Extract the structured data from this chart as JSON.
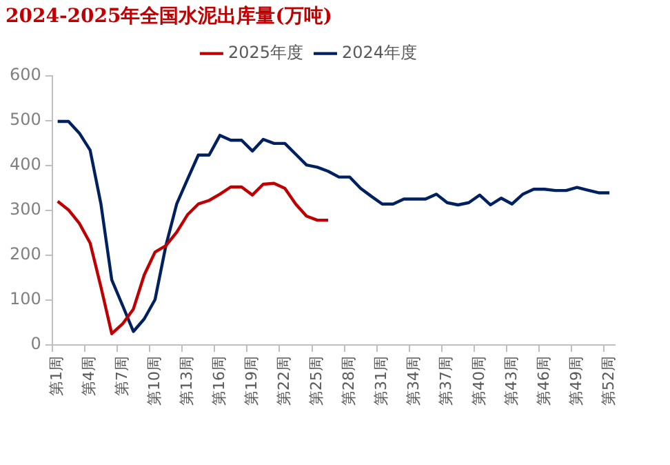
{
  "chart_data": {
    "type": "line",
    "title": "2024-2025年全国水泥出库量(万吨)",
    "categories": [
      "第1周",
      null,
      null,
      "第4周",
      null,
      null,
      "第7周",
      null,
      null,
      "第10周",
      null,
      null,
      "第13周",
      null,
      null,
      "第16周",
      null,
      null,
      "第19周",
      null,
      null,
      "第22周",
      null,
      null,
      "第25周",
      null,
      null,
      "第28周",
      null,
      null,
      "第31周",
      null,
      null,
      "第34周",
      null,
      null,
      "第37周",
      null,
      null,
      "第40周",
      null,
      null,
      "第43周",
      null,
      null,
      "第46周",
      null,
      null,
      "第49周",
      null,
      null,
      "第52周"
    ],
    "series": [
      {
        "name": "2025年度",
        "color": "#c00000",
        "values": [
          320,
          301,
          271,
          227,
          129,
          25,
          47,
          80,
          156,
          207,
          221,
          251,
          290,
          314,
          322,
          336,
          352,
          352,
          334,
          358,
          360,
          349,
          314,
          287,
          278,
          278,
          null,
          null,
          null,
          null,
          null,
          null,
          null,
          null,
          null,
          null,
          null,
          null,
          null,
          null,
          null,
          null,
          null,
          null,
          null,
          null,
          null,
          null,
          null,
          null,
          null,
          null
        ]
      },
      {
        "name": "2024年度",
        "color": "#002060",
        "values": [
          498,
          498,
          472,
          434,
          314,
          145,
          88,
          30,
          58,
          101,
          221,
          314,
          369,
          423,
          423,
          467,
          456,
          456,
          432,
          458,
          449,
          449,
          425,
          401,
          396,
          387,
          374,
          374,
          349,
          331,
          314,
          314,
          325,
          325,
          325,
          336,
          317,
          312,
          317,
          334,
          312,
          327,
          314,
          336,
          347,
          347,
          344,
          344,
          351,
          345,
          339,
          339
        ]
      }
    ],
    "ylim": [
      0,
      600
    ],
    "yticks": [
      0,
      100,
      200,
      300,
      400,
      500,
      600
    ],
    "grid": false,
    "legend": "top",
    "marker": "none",
    "line_style": "solid"
  }
}
